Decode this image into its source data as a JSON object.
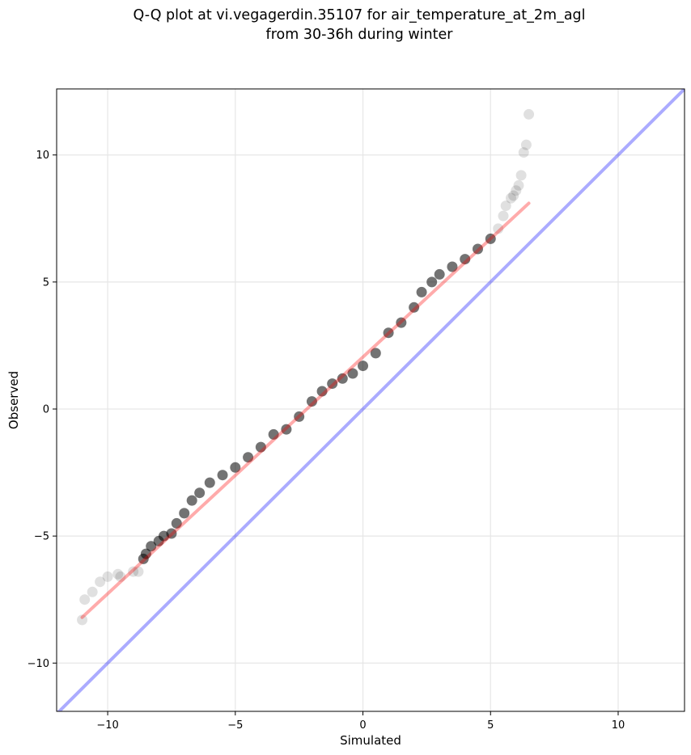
{
  "chart_data": {
    "type": "scatter",
    "title_lines": [
      "Q-Q plot at vi.vegagerdin.35107 for air_temperature_at_2m_agl",
      "from 30-36h during winter"
    ],
    "xlabel": "Simulated",
    "ylabel": "Observed",
    "xlim": [
      -12,
      12.6
    ],
    "ylim": [
      -11.9,
      12.6
    ],
    "xticks": [
      -10,
      -5,
      0,
      5,
      10
    ],
    "yticks": [
      -10,
      -5,
      0,
      5,
      10
    ],
    "xtick_labels": [
      "−10",
      "−5",
      "0",
      "5",
      "10"
    ],
    "ytick_labels": [
      "−10",
      "−5",
      "0",
      "5",
      "10"
    ],
    "grid": true,
    "colors": {
      "points": "#000000",
      "fit_line": "#ff0000",
      "identity_line": "#0000ff",
      "grid": "#e6e6e6"
    },
    "series": [
      {
        "role": "quantile_points",
        "x": [
          -11.0,
          -10.9,
          -10.6,
          -10.3,
          -10.0,
          -9.6,
          -9.5,
          -9.0,
          -8.8,
          -8.6,
          -8.5,
          -8.3,
          -8.0,
          -7.8,
          -7.5,
          -7.3,
          -7.0,
          -6.7,
          -6.4,
          -6.0,
          -5.5,
          -5.0,
          -4.5,
          -4.0,
          -3.5,
          -3.0,
          -2.5,
          -2.0,
          -1.6,
          -1.2,
          -0.8,
          -0.4,
          0.0,
          0.5,
          1.0,
          1.5,
          2.0,
          2.3,
          2.7,
          3.0,
          3.5,
          4.0,
          4.5,
          5.0,
          5.3,
          5.5,
          5.6,
          5.8,
          5.9,
          6.0,
          6.1,
          6.2,
          6.3,
          6.4,
          6.5
        ],
        "y": [
          -8.3,
          -7.5,
          -7.2,
          -6.8,
          -6.6,
          -6.5,
          -6.6,
          -6.4,
          -6.4,
          -5.9,
          -5.7,
          -5.4,
          -5.2,
          -5.0,
          -4.9,
          -4.5,
          -4.1,
          -3.6,
          -3.3,
          -2.9,
          -2.6,
          -2.3,
          -1.9,
          -1.5,
          -1.0,
          -0.8,
          -0.3,
          0.3,
          0.7,
          1.0,
          1.2,
          1.4,
          1.7,
          2.2,
          3.0,
          3.4,
          4.0,
          4.6,
          5.0,
          5.3,
          5.6,
          5.9,
          6.3,
          6.7,
          7.1,
          7.6,
          8.0,
          8.3,
          8.4,
          8.6,
          8.8,
          9.2,
          10.1,
          10.4,
          11.6
        ]
      },
      {
        "role": "fit_line",
        "x": [
          -11.0,
          6.5
        ],
        "y": [
          -8.2,
          8.1
        ]
      },
      {
        "role": "identity_line",
        "x": [
          -12,
          12.6
        ],
        "y": [
          -12,
          12.6
        ]
      }
    ]
  }
}
